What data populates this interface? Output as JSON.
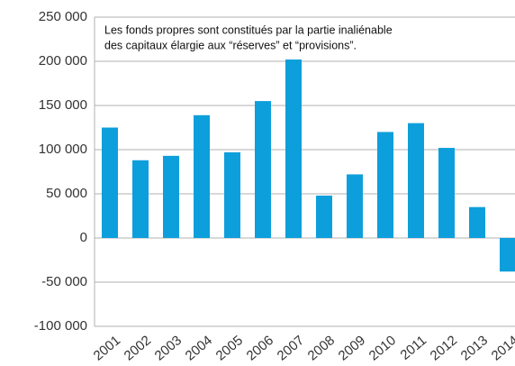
{
  "chart_data": {
    "type": "bar",
    "annotation": [
      "Les fonds propres sont constitués par la partie inaliénable",
      "des capitaux élargie aux “réserves” et “provisions”."
    ],
    "categories": [
      "2001",
      "2002",
      "2003",
      "2004",
      "2005",
      "2006",
      "2007",
      "2008",
      "2009",
      "2010",
      "2011",
      "2012",
      "2013",
      "2014"
    ],
    "values": [
      125000,
      88000,
      93000,
      139000,
      97000,
      155000,
      203000,
      48000,
      72000,
      120000,
      130000,
      102000,
      35000,
      -38000
    ],
    "color": "#0d9fdb",
    "ylim": [
      -100000,
      250000
    ],
    "yticks": [
      {
        "value": -100000,
        "label": "-100 000"
      },
      {
        "value": -50000,
        "label": "-50 000"
      },
      0,
      {
        "value": 50000,
        "label": "50 000"
      },
      {
        "value": 100000,
        "label": "100 000"
      },
      {
        "value": 150000,
        "label": "150 000"
      },
      {
        "value": 200000,
        "label": "200 000"
      },
      {
        "value": 250000,
        "label": "250 000"
      }
    ],
    "grid": true
  }
}
